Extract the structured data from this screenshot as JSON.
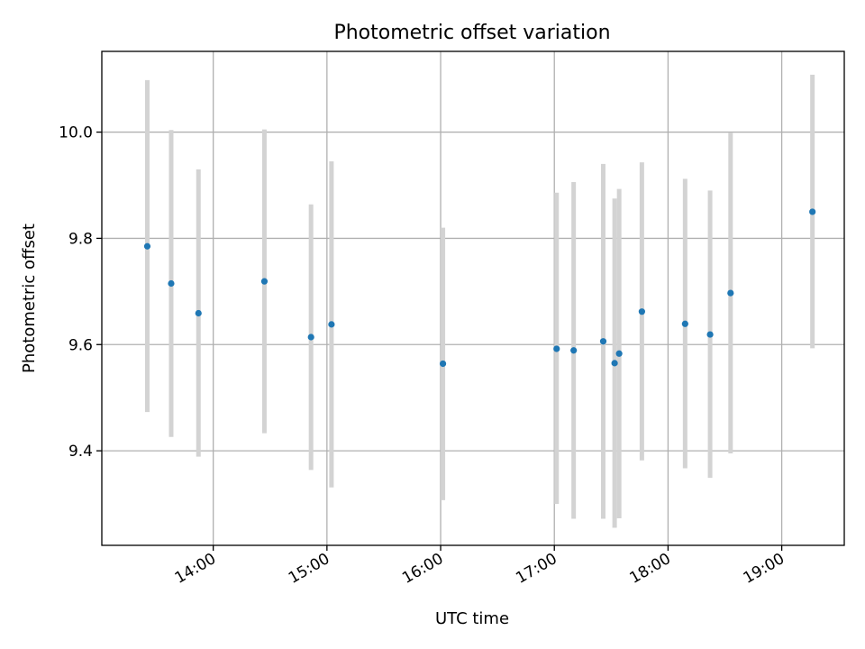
{
  "chart_data": {
    "type": "scatter",
    "title": "Photometric offset variation",
    "xlabel": "UTC time",
    "ylabel": "Photometric offset",
    "x_unit": "hours UTC",
    "xlim": [
      13.02,
      19.55
    ],
    "ylim": [
      9.222,
      10.152
    ],
    "x_ticks": [
      {
        "value": 14,
        "label": "14:00"
      },
      {
        "value": 15,
        "label": "15:00"
      },
      {
        "value": 16,
        "label": "16:00"
      },
      {
        "value": 17,
        "label": "17:00"
      },
      {
        "value": 18,
        "label": "18:00"
      },
      {
        "value": 19,
        "label": "19:00"
      }
    ],
    "y_ticks": [
      {
        "value": 9.4,
        "label": "9.4"
      },
      {
        "value": 9.6,
        "label": "9.6"
      },
      {
        "value": 9.8,
        "label": "9.8"
      },
      {
        "value": 10.0,
        "label": "10.0"
      }
    ],
    "grid": true,
    "x_tick_rotation": "angled",
    "series": [
      {
        "points": [
          {
            "x": 13.42,
            "y": 9.785,
            "low": 9.473,
            "high": 10.098
          },
          {
            "x": 13.63,
            "y": 9.715,
            "low": 9.426,
            "high": 10.004
          },
          {
            "x": 13.87,
            "y": 9.659,
            "low": 9.389,
            "high": 9.93
          },
          {
            "x": 14.45,
            "y": 9.719,
            "low": 9.433,
            "high": 10.005
          },
          {
            "x": 14.86,
            "y": 9.614,
            "low": 9.364,
            "high": 9.864
          },
          {
            "x": 15.04,
            "y": 9.638,
            "low": 9.331,
            "high": 9.945
          },
          {
            "x": 16.02,
            "y": 9.564,
            "low": 9.307,
            "high": 9.82
          },
          {
            "x": 17.02,
            "y": 9.592,
            "low": 9.3,
            "high": 9.886
          },
          {
            "x": 17.17,
            "y": 9.589,
            "low": 9.272,
            "high": 9.906
          },
          {
            "x": 17.43,
            "y": 9.606,
            "low": 9.272,
            "high": 9.94
          },
          {
            "x": 17.53,
            "y": 9.565,
            "low": 9.255,
            "high": 9.875
          },
          {
            "x": 17.57,
            "y": 9.583,
            "low": 9.273,
            "high": 9.893
          },
          {
            "x": 17.77,
            "y": 9.662,
            "low": 9.382,
            "high": 9.943
          },
          {
            "x": 18.15,
            "y": 9.639,
            "low": 9.367,
            "high": 9.912
          },
          {
            "x": 18.37,
            "y": 9.619,
            "low": 9.349,
            "high": 9.89
          },
          {
            "x": 18.55,
            "y": 9.697,
            "low": 9.395,
            "high": 9.999
          },
          {
            "x": 19.27,
            "y": 9.85,
            "low": 9.593,
            "high": 10.108
          }
        ]
      }
    ],
    "colors": {
      "point": "#1f77b4",
      "error_bar": "#d3d3d3"
    }
  }
}
